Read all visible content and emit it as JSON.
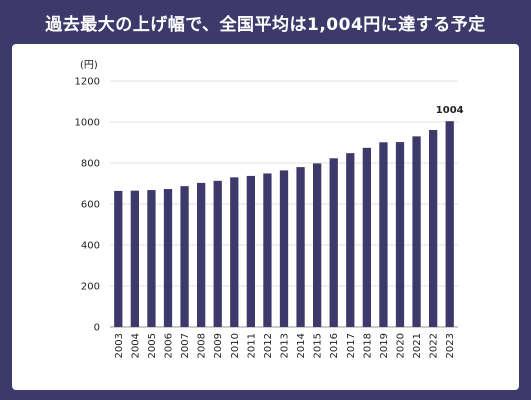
{
  "title": "過去最大の上げ幅で、全国平均は1,004円に達する予定",
  "chart_data": {
    "type": "bar",
    "ylabel": "(円)",
    "categories": [
      "2003",
      "2004",
      "2005",
      "2006",
      "2007",
      "2008",
      "2009",
      "2010",
      "2011",
      "2012",
      "2013",
      "2014",
      "2015",
      "2016",
      "2017",
      "2018",
      "2019",
      "2020",
      "2021",
      "2022",
      "2023"
    ],
    "values": [
      664,
      665,
      668,
      673,
      687,
      703,
      713,
      730,
      737,
      749,
      764,
      780,
      798,
      823,
      848,
      874,
      901,
      902,
      930,
      961,
      1004
    ],
    "ylim": [
      0,
      1200
    ],
    "yticks": [
      0,
      200,
      400,
      600,
      800,
      1000,
      1200
    ],
    "data_labels": [
      {
        "category": "2023",
        "text": "1004"
      }
    ],
    "grid": true,
    "bar_color": "#3d3a6b"
  }
}
